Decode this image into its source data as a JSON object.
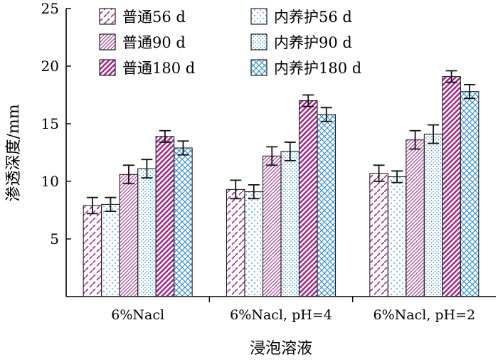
{
  "chart_data": {
    "type": "bar",
    "xlabel": "浸泡溶液",
    "ylabel": "渗透深度/mm",
    "ylim": [
      0,
      25
    ],
    "yticks": [
      5,
      10,
      15,
      20,
      25
    ],
    "categories": [
      "6%Nacl",
      "6%Nacl, pH=4",
      "6%Nacl, pH=2"
    ],
    "grid": false,
    "legend_position": "top-left",
    "error_bars": true,
    "series": [
      {
        "name": "普通56 d",
        "values": [
          7.9,
          9.3,
          10.7
        ],
        "errors": [
          0.7,
          0.8,
          0.7
        ],
        "color": "#a0308a",
        "pattern": "diagonal-dash"
      },
      {
        "name": "内养护56 d",
        "values": [
          8.0,
          9.1,
          10.4
        ],
        "errors": [
          0.6,
          0.6,
          0.5
        ],
        "color": "#2a8ac8",
        "pattern": "sparse-dots"
      },
      {
        "name": "普通90 d",
        "values": [
          10.6,
          12.2,
          13.6
        ],
        "errors": [
          0.8,
          0.8,
          0.8
        ],
        "color": "#a0308a",
        "pattern": "diagonal-dense"
      },
      {
        "name": "内养护90 d",
        "values": [
          11.1,
          12.6,
          14.1
        ],
        "errors": [
          0.8,
          0.8,
          0.8
        ],
        "color": "#2a8ac8",
        "pattern": "dense-dots"
      },
      {
        "name": "普通180 d",
        "values": [
          13.9,
          17.0,
          19.1
        ],
        "errors": [
          0.5,
          0.5,
          0.5
        ],
        "color": "#a0308a",
        "pattern": "diagonal-bold"
      },
      {
        "name": "内养护180 d",
        "values": [
          12.9,
          15.8,
          17.8
        ],
        "errors": [
          0.6,
          0.6,
          0.6
        ],
        "color": "#2a8ac8",
        "pattern": "crosshatch"
      }
    ]
  }
}
